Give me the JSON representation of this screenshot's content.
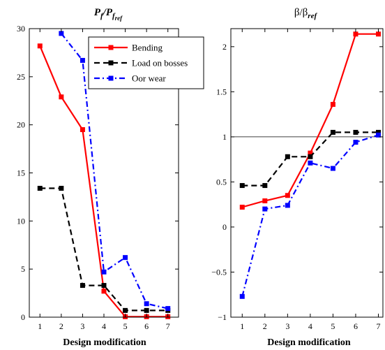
{
  "chart_data": [
    {
      "type": "line",
      "title": {
        "main": "P",
        "sub1": "f",
        "sep": "/P",
        "sub2": "f",
        "subsub": "ref"
      },
      "xlabel": "Design modification",
      "ylabel": "",
      "x": [
        1,
        2,
        3,
        4,
        5,
        6,
        7
      ],
      "xlim": [
        0.5,
        7.5
      ],
      "ylim": [
        0,
        30
      ],
      "xticks": [
        1,
        2,
        3,
        4,
        5,
        6,
        7
      ],
      "yticks": [
        0,
        5,
        10,
        15,
        20,
        25,
        30
      ],
      "grid": false,
      "legend_placement": "top-right",
      "series": [
        {
          "name": "Bending",
          "color": "#ff0000",
          "dash": "solid",
          "values": [
            28.2,
            22.9,
            19.5,
            2.7,
            0.05,
            0.05,
            0.05
          ]
        },
        {
          "name": "Load on bosses",
          "color": "#000000",
          "dash": "dashed",
          "values": [
            13.4,
            13.4,
            3.3,
            3.3,
            0.7,
            0.7,
            0.7
          ]
        },
        {
          "name": "Oor wear",
          "color": "#0000ff",
          "dash": "dashdot",
          "values": [
            null,
            29.5,
            26.7,
            4.7,
            6.2,
            1.4,
            0.9
          ]
        }
      ]
    },
    {
      "type": "line",
      "title": {
        "main": "β/β",
        "sub": "ref"
      },
      "xlabel": "Design modification",
      "ylabel": "",
      "x": [
        1,
        2,
        3,
        4,
        5,
        6,
        7
      ],
      "xlim": [
        0.5,
        7.2
      ],
      "ylim": [
        -1,
        2.2
      ],
      "xticks": [
        1,
        2,
        3,
        4,
        5,
        6,
        7
      ],
      "yticks": [
        -1,
        -0.5,
        0,
        0.5,
        1,
        1.5,
        2
      ],
      "grid": false,
      "reference_line": 1,
      "series": [
        {
          "name": "Bending",
          "color": "#ff0000",
          "dash": "solid",
          "values": [
            0.22,
            0.29,
            0.35,
            0.82,
            1.36,
            2.14,
            2.14
          ]
        },
        {
          "name": "Load on bosses",
          "color": "#000000",
          "dash": "dashed",
          "values": [
            0.46,
            0.46,
            0.78,
            0.78,
            1.05,
            1.05,
            1.05
          ]
        },
        {
          "name": "Oor wear",
          "color": "#0000ff",
          "dash": "dashdot",
          "values": [
            -0.77,
            0.2,
            0.24,
            0.71,
            0.65,
            0.94,
            1.02
          ]
        }
      ]
    }
  ]
}
